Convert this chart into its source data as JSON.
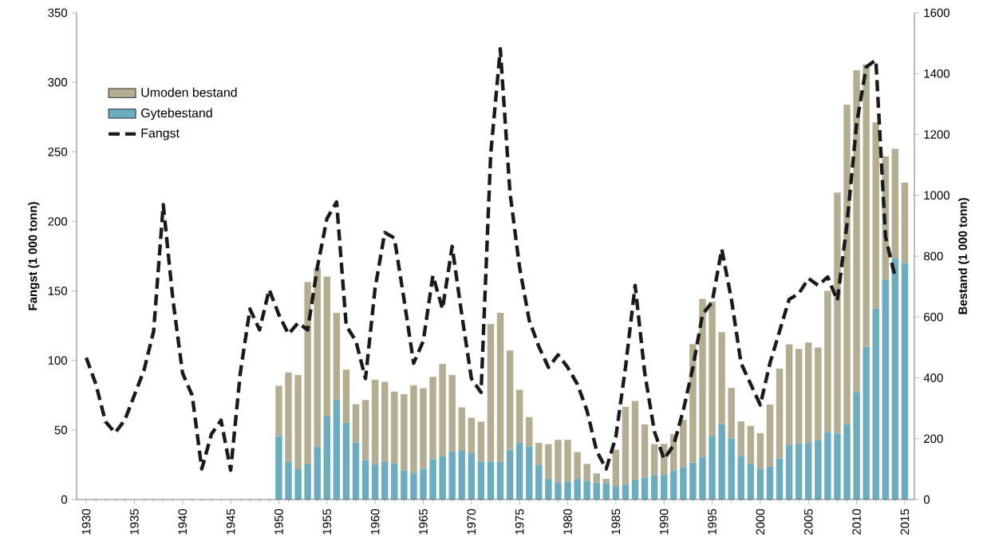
{
  "chart_data": {
    "type": "bar",
    "stacked": true,
    "ylabel": "Fangst (1 000 tonn)",
    "y2label": "Bestand (1 000 tonn)",
    "legend": "top left",
    "xlim": [
      1929,
      2016
    ],
    "xticks": [
      1930,
      1935,
      1940,
      1945,
      1950,
      1955,
      1960,
      1965,
      1970,
      1975,
      1980,
      1985,
      1990,
      1995,
      2000,
      2005,
      2010,
      2015
    ],
    "ylim": [
      0,
      350
    ],
    "yticks": [
      0,
      50,
      100,
      150,
      200,
      250,
      300,
      350
    ],
    "y2lim": [
      0,
      1600
    ],
    "y2ticks": [
      0,
      200,
      400,
      600,
      800,
      1000,
      1200,
      1400,
      1600
    ],
    "series": [
      {
        "name": "Gytebestand",
        "axis": "y2",
        "color": "#6badbf",
        "x": [
          1950,
          1951,
          1952,
          1953,
          1954,
          1955,
          1956,
          1957,
          1958,
          1959,
          1960,
          1961,
          1962,
          1963,
          1964,
          1965,
          1966,
          1967,
          1968,
          1969,
          1970,
          1971,
          1972,
          1973,
          1974,
          1975,
          1976,
          1977,
          1978,
          1979,
          1980,
          1981,
          1982,
          1983,
          1984,
          1985,
          1986,
          1987,
          1988,
          1989,
          1990,
          1991,
          1992,
          1993,
          1994,
          1995,
          1996,
          1997,
          1998,
          1999,
          2000,
          2001,
          2002,
          2003,
          2004,
          2005,
          2006,
          2007,
          2008,
          2009,
          2010,
          2011,
          2012,
          2013,
          2014,
          2015
        ],
        "values": [
          208,
          124,
          100,
          117,
          173,
          273,
          327,
          252,
          187,
          130,
          115,
          124,
          119,
          96,
          86,
          101,
          133,
          143,
          157,
          163,
          152,
          124,
          124,
          124,
          163,
          187,
          175,
          113,
          68,
          56,
          58,
          68,
          61,
          56,
          54,
          44,
          49,
          65,
          72,
          79,
          82,
          96,
          107,
          121,
          140,
          208,
          248,
          201,
          143,
          117,
          100,
          108,
          135,
          178,
          184,
          187,
          194,
          222,
          217,
          248,
          353,
          502,
          628,
          721,
          792,
          777
        ]
      },
      {
        "name": "Umoden bestand",
        "axis": "y2",
        "color": "#b3ae92",
        "x": [
          1950,
          1951,
          1952,
          1953,
          1954,
          1955,
          1956,
          1957,
          1958,
          1959,
          1960,
          1961,
          1962,
          1963,
          1964,
          1965,
          1966,
          1967,
          1968,
          1969,
          1970,
          1971,
          1972,
          1973,
          1974,
          1975,
          1976,
          1977,
          1978,
          1979,
          1980,
          1981,
          1982,
          1983,
          1984,
          1985,
          1986,
          1987,
          1988,
          1989,
          1990,
          1991,
          1992,
          1993,
          1994,
          1995,
          1996,
          1997,
          1998,
          1999,
          2000,
          2001,
          2002,
          2003,
          2004,
          2005,
          2006,
          2007,
          2008,
          2009,
          2010,
          2011,
          2012,
          2013,
          2014,
          2015
        ],
        "values": [
          166,
          294,
          309,
          598,
          589,
          460,
          287,
          175,
          126,
          197,
          279,
          263,
          236,
          250,
          290,
          265,
          270,
          303,
          252,
          140,
          117,
          132,
          453,
          490,
          327,
          174,
          96,
          73,
          114,
          140,
          138,
          88,
          56,
          30,
          14,
          120,
          255,
          259,
          175,
          103,
          101,
          119,
          155,
          390,
          520,
          442,
          302,
          166,
          114,
          125,
          118,
          204,
          295,
          332,
          311,
          329,
          306,
          464,
          792,
          1050,
          1058,
          928,
          612,
          407,
          361,
          264
        ]
      },
      {
        "name": "Fangst",
        "type": "line",
        "line_style": "dashed",
        "color": "#1a1a1a",
        "x": [
          1930,
          1931,
          1932,
          1933,
          1934,
          1935,
          1936,
          1937,
          1938,
          1939,
          1940,
          1941,
          1942,
          1943,
          1944,
          1945,
          1946,
          1947,
          1948,
          1949,
          1950,
          1951,
          1952,
          1953,
          1954,
          1955,
          1956,
          1957,
          1958,
          1959,
          1960,
          1961,
          1962,
          1963,
          1964,
          1965,
          1966,
          1967,
          1968,
          1969,
          1970,
          1971,
          1972,
          1973,
          1974,
          1975,
          1976,
          1977,
          1978,
          1979,
          1980,
          1981,
          1982,
          1983,
          1984,
          1985,
          1986,
          1987,
          1988,
          1989,
          1990,
          1991,
          1992,
          1993,
          1994,
          1995,
          1996,
          1997,
          1998,
          1999,
          2000,
          2001,
          2002,
          2003,
          2004,
          2005,
          2006,
          2007,
          2008,
          2009,
          2010,
          2011,
          2012,
          2013,
          2014
        ],
        "values": [
          102,
          83,
          56,
          48,
          57,
          75,
          93,
          121,
          212,
          144,
          91,
          75,
          22,
          47,
          57,
          21,
          91,
          137,
          122,
          151,
          133,
          119,
          127,
          122,
          167,
          202,
          214,
          125,
          114,
          87,
          152,
          192,
          188,
          144,
          98,
          114,
          161,
          137,
          182,
          133,
          87,
          77,
          248,
          324,
          221,
          167,
          129,
          110,
          95,
          104,
          95,
          83,
          64,
          35,
          22,
          45,
          95,
          154,
          91,
          49,
          29,
          39,
          64,
          95,
          133,
          142,
          180,
          144,
          98,
          83,
          68,
          98,
          121,
          144,
          148,
          159,
          154,
          160,
          143,
          198,
          270,
          311,
          316,
          189,
          160
        ]
      }
    ]
  }
}
